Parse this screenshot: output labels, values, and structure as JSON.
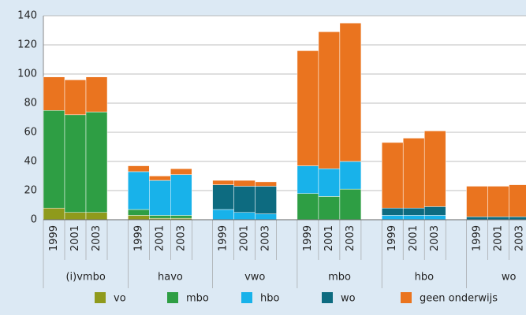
{
  "chart_data": {
    "type": "bar",
    "stacked": true,
    "groups": [
      {
        "name": "(i)vmbo",
        "categories": [
          "1999",
          "2001",
          "2003"
        ]
      },
      {
        "name": "havo",
        "categories": [
          "1999",
          "2001",
          "2003"
        ]
      },
      {
        "name": "vwo",
        "categories": [
          "1999",
          "2001",
          "2003"
        ]
      },
      {
        "name": "mbo",
        "categories": [
          "1999",
          "2001",
          "2003"
        ]
      },
      {
        "name": "hbo",
        "categories": [
          "1999",
          "2001",
          "2003"
        ]
      },
      {
        "name": "wo",
        "categories": [
          "1999",
          "2001",
          "2003"
        ]
      }
    ],
    "series": [
      {
        "name": "vo",
        "color": "#8f9a1c",
        "values": [
          8,
          5,
          5,
          3,
          1,
          1,
          0,
          0,
          0,
          0,
          0,
          0,
          0,
          0,
          0,
          0,
          0,
          0
        ]
      },
      {
        "name": "mbo",
        "color": "#2e9e44",
        "values": [
          67,
          67,
          69,
          4,
          2,
          2,
          0,
          0,
          0,
          18,
          16,
          21,
          0,
          0,
          0,
          0,
          0,
          0
        ]
      },
      {
        "name": "hbo",
        "color": "#18b2ea",
        "values": [
          0,
          0,
          0,
          26,
          24,
          28,
          7,
          5,
          4,
          19,
          19,
          19,
          3,
          3,
          3,
          0,
          0,
          0
        ]
      },
      {
        "name": "wo",
        "color": "#0d6b80",
        "values": [
          0,
          0,
          0,
          0,
          0,
          0,
          17,
          18,
          19,
          0,
          0,
          0,
          5,
          5,
          6,
          2,
          2,
          2
        ]
      },
      {
        "name": "geen onderwijs",
        "color": "#ea741f",
        "values": [
          23,
          24,
          24,
          4,
          3,
          4,
          3,
          4,
          3,
          79,
          94,
          95,
          45,
          48,
          52,
          21,
          21,
          22
        ]
      }
    ],
    "ylim": [
      0,
      140
    ],
    "yticks": [
      0,
      20,
      40,
      60,
      80,
      100,
      120,
      140
    ],
    "grid": true
  }
}
